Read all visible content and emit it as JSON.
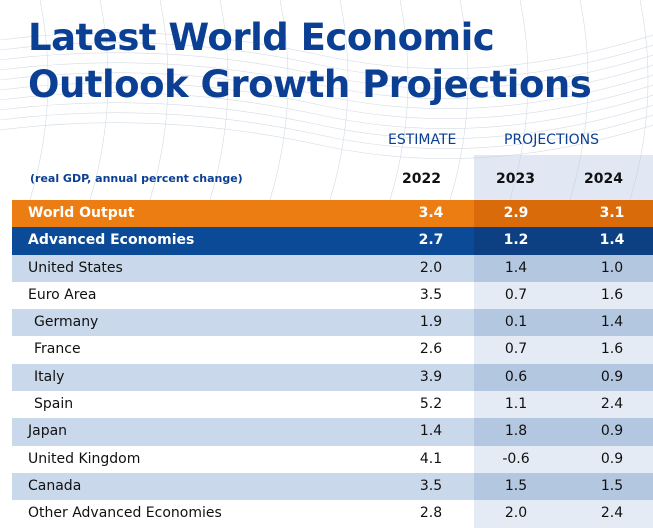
{
  "title": {
    "line1": "Latest World Economic",
    "line2": "Outlook Growth Projections"
  },
  "headers": {
    "estimate": "ESTIMATE",
    "projections": "PROJECTIONS",
    "subtitle": "(real GDP, annual percent change)",
    "years": [
      "2022",
      "2023",
      "2024"
    ]
  },
  "colors": {
    "title": "#0b3f93",
    "world_output_row": "#ec7d13",
    "advanced_row": "#0b4a97",
    "shade_row": "#c9d8ea"
  },
  "rows": [
    {
      "label": "World Output",
      "v2022": "3.4",
      "v2023": "2.9",
      "v2024": "3.1"
    },
    {
      "label": "Advanced Economies",
      "v2022": "2.7",
      "v2023": "1.2",
      "v2024": "1.4"
    },
    {
      "label": "United States",
      "v2022": "2.0",
      "v2023": "1.4",
      "v2024": "1.0"
    },
    {
      "label": "Euro Area",
      "v2022": "3.5",
      "v2023": "0.7",
      "v2024": "1.6"
    },
    {
      "label": "Germany",
      "v2022": "1.9",
      "v2023": "0.1",
      "v2024": "1.4"
    },
    {
      "label": "France",
      "v2022": "2.6",
      "v2023": "0.7",
      "v2024": "1.6"
    },
    {
      "label": "Italy",
      "v2022": "3.9",
      "v2023": "0.6",
      "v2024": "0.9"
    },
    {
      "label": "Spain",
      "v2022": "5.2",
      "v2023": "1.1",
      "v2024": "2.4"
    },
    {
      "label": "Japan",
      "v2022": "1.4",
      "v2023": "1.8",
      "v2024": "0.9"
    },
    {
      "label": "United Kingdom",
      "v2022": "4.1",
      "v2023": "-0.6",
      "v2024": "0.9"
    },
    {
      "label": "Canada",
      "v2022": "3.5",
      "v2023": "1.5",
      "v2024": "1.5"
    },
    {
      "label": "Other Advanced Economies",
      "v2022": "2.8",
      "v2023": "2.0",
      "v2024": "2.4"
    }
  ]
}
